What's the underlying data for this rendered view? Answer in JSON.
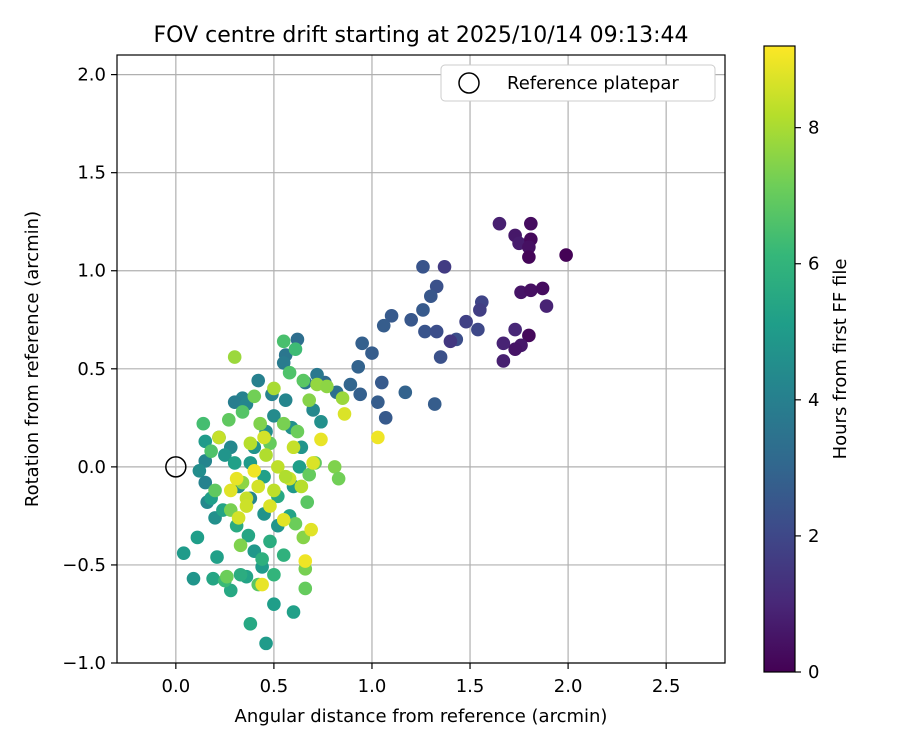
{
  "chart_data": {
    "type": "scatter",
    "title": "FOV centre drift starting at 2025/10/14 09:13:44",
    "xlabel": "Angular distance from reference (arcmin)",
    "ylabel": "Rotation from reference (arcmin)",
    "xlim": [
      -0.3,
      2.8
    ],
    "ylim": [
      -1.0,
      2.1
    ],
    "xticks": [
      0.0,
      0.5,
      1.0,
      1.5,
      2.0,
      2.5
    ],
    "xtick_labels": [
      "0.0",
      "0.5",
      "1.0",
      "1.5",
      "2.0",
      "2.5"
    ],
    "yticks": [
      -1.0,
      -0.5,
      0.0,
      0.5,
      1.0,
      1.5,
      2.0
    ],
    "ytick_labels": [
      "−1.0",
      "−0.5",
      "0.0",
      "0.5",
      "1.0",
      "1.5",
      "2.0"
    ],
    "grid": true,
    "legend": {
      "position": "top-right",
      "entries": [
        {
          "label": "Reference platepar",
          "marker": "open-circle"
        }
      ]
    },
    "reference_point": {
      "x": 0.0,
      "y": 0.0
    },
    "colorbar": {
      "label": "Hours from first FF file",
      "colormap": "viridis",
      "range": [
        0,
        9.2
      ],
      "ticks": [
        0,
        2,
        4,
        6,
        8
      ],
      "tick_labels": [
        "0",
        "2",
        "4",
        "6",
        "8"
      ]
    },
    "colormap_stops": [
      "#440154",
      "#482878",
      "#3e4989",
      "#31688e",
      "#26828e",
      "#1f9e89",
      "#35b779",
      "#6ece58",
      "#b5de2b",
      "#fde725"
    ],
    "series": [
      {
        "name": "FOV centre drift",
        "points": [
          {
            "x": 1.65,
            "y": 1.24,
            "h": 0.8
          },
          {
            "x": 1.73,
            "y": 1.18,
            "h": 0.6
          },
          {
            "x": 1.81,
            "y": 1.24,
            "h": 0.3
          },
          {
            "x": 1.75,
            "y": 1.14,
            "h": 0.7
          },
          {
            "x": 1.81,
            "y": 1.16,
            "h": 0.2
          },
          {
            "x": 1.8,
            "y": 1.12,
            "h": 0.4
          },
          {
            "x": 1.8,
            "y": 1.07,
            "h": 0.1
          },
          {
            "x": 1.99,
            "y": 1.08,
            "h": 0.05
          },
          {
            "x": 1.76,
            "y": 0.89,
            "h": 0.5
          },
          {
            "x": 1.81,
            "y": 0.9,
            "h": 0.4
          },
          {
            "x": 1.87,
            "y": 0.91,
            "h": 0.3
          },
          {
            "x": 1.89,
            "y": 0.82,
            "h": 0.9
          },
          {
            "x": 1.73,
            "y": 0.7,
            "h": 1.0
          },
          {
            "x": 1.8,
            "y": 0.67,
            "h": 0.2
          },
          {
            "x": 1.76,
            "y": 0.62,
            "h": 0.6
          },
          {
            "x": 1.73,
            "y": 0.6,
            "h": 0.5
          },
          {
            "x": 1.67,
            "y": 0.63,
            "h": 0.9
          },
          {
            "x": 1.67,
            "y": 0.54,
            "h": 0.8
          },
          {
            "x": 1.56,
            "y": 0.84,
            "h": 1.9
          },
          {
            "x": 1.55,
            "y": 0.8,
            "h": 1.7
          },
          {
            "x": 1.48,
            "y": 0.74,
            "h": 1.8
          },
          {
            "x": 1.54,
            "y": 0.7,
            "h": 2.0
          },
          {
            "x": 1.43,
            "y": 0.65,
            "h": 2.2
          },
          {
            "x": 1.4,
            "y": 0.64,
            "h": 1.5
          },
          {
            "x": 1.37,
            "y": 1.02,
            "h": 1.6
          },
          {
            "x": 1.26,
            "y": 1.02,
            "h": 2.4
          },
          {
            "x": 1.33,
            "y": 0.92,
            "h": 2.3
          },
          {
            "x": 1.3,
            "y": 0.87,
            "h": 2.5
          },
          {
            "x": 1.26,
            "y": 0.8,
            "h": 2.6
          },
          {
            "x": 1.27,
            "y": 0.69,
            "h": 2.4
          },
          {
            "x": 1.33,
            "y": 0.69,
            "h": 2.2
          },
          {
            "x": 1.35,
            "y": 0.56,
            "h": 2.3
          },
          {
            "x": 1.1,
            "y": 0.77,
            "h": 2.6
          },
          {
            "x": 1.06,
            "y": 0.72,
            "h": 2.7
          },
          {
            "x": 1.2,
            "y": 0.75,
            "h": 2.5
          },
          {
            "x": 0.95,
            "y": 0.63,
            "h": 2.8
          },
          {
            "x": 1.0,
            "y": 0.58,
            "h": 2.7
          },
          {
            "x": 0.93,
            "y": 0.51,
            "h": 2.9
          },
          {
            "x": 1.05,
            "y": 0.43,
            "h": 2.6
          },
          {
            "x": 0.89,
            "y": 0.42,
            "h": 3.0
          },
          {
            "x": 0.94,
            "y": 0.37,
            "h": 2.8
          },
          {
            "x": 1.03,
            "y": 0.33,
            "h": 2.7
          },
          {
            "x": 1.07,
            "y": 0.25,
            "h": 2.6
          },
          {
            "x": 1.17,
            "y": 0.38,
            "h": 2.9
          },
          {
            "x": 1.32,
            "y": 0.32,
            "h": 2.7
          },
          {
            "x": 0.82,
            "y": 0.38,
            "h": 3.4
          },
          {
            "x": 0.76,
            "y": 0.43,
            "h": 3.2
          },
          {
            "x": 0.62,
            "y": 0.65,
            "h": 3.3
          },
          {
            "x": 0.56,
            "y": 0.57,
            "h": 3.6
          },
          {
            "x": 0.55,
            "y": 0.53,
            "h": 3.8
          },
          {
            "x": 0.72,
            "y": 0.47,
            "h": 3.7
          },
          {
            "x": 0.66,
            "y": 0.43,
            "h": 3.6
          },
          {
            "x": 0.42,
            "y": 0.44,
            "h": 4.0
          },
          {
            "x": 0.34,
            "y": 0.35,
            "h": 4.1
          },
          {
            "x": 0.3,
            "y": 0.33,
            "h": 3.9
          },
          {
            "x": 0.36,
            "y": 0.32,
            "h": 4.2
          },
          {
            "x": 0.22,
            "y": 0.15,
            "h": 4.0
          },
          {
            "x": 0.28,
            "y": 0.1,
            "h": 4.3
          },
          {
            "x": 0.15,
            "y": 0.03,
            "h": 4.2
          },
          {
            "x": 0.12,
            "y": -0.02,
            "h": 4.5
          },
          {
            "x": 0.15,
            "y": -0.08,
            "h": 4.1
          },
          {
            "x": 0.16,
            "y": -0.18,
            "h": 4.3
          },
          {
            "x": 0.2,
            "y": -0.26,
            "h": 4.6
          },
          {
            "x": 0.32,
            "y": -0.1,
            "h": 4.4
          },
          {
            "x": 0.38,
            "y": -0.16,
            "h": 4.2
          },
          {
            "x": 0.45,
            "y": -0.24,
            "h": 4.7
          },
          {
            "x": 0.52,
            "y": -0.3,
            "h": 4.8
          },
          {
            "x": 0.4,
            "y": -0.43,
            "h": 4.9
          },
          {
            "x": 0.44,
            "y": -0.51,
            "h": 5.0
          },
          {
            "x": 0.5,
            "y": -0.7,
            "h": 5.1
          },
          {
            "x": 0.46,
            "y": -0.9,
            "h": 5.0
          },
          {
            "x": 0.6,
            "y": -0.74,
            "h": 5.2
          },
          {
            "x": 0.09,
            "y": -0.57,
            "h": 4.8
          },
          {
            "x": 0.04,
            "y": -0.44,
            "h": 5.0
          },
          {
            "x": 0.19,
            "y": -0.57,
            "h": 5.4
          },
          {
            "x": 0.21,
            "y": -0.46,
            "h": 5.2
          },
          {
            "x": 0.11,
            "y": -0.36,
            "h": 5.1
          },
          {
            "x": 0.28,
            "y": -0.63,
            "h": 5.5
          },
          {
            "x": 0.36,
            "y": -0.56,
            "h": 5.3
          },
          {
            "x": 0.33,
            "y": -0.55,
            "h": 5.7
          },
          {
            "x": 0.38,
            "y": -0.8,
            "h": 5.5
          },
          {
            "x": 0.25,
            "y": -0.58,
            "h": 6.2
          },
          {
            "x": 0.5,
            "y": -0.55,
            "h": 6.0
          },
          {
            "x": 0.44,
            "y": -0.47,
            "h": 5.8
          },
          {
            "x": 0.15,
            "y": 0.13,
            "h": 5.0
          },
          {
            "x": 0.25,
            "y": 0.06,
            "h": 4.8
          },
          {
            "x": 0.3,
            "y": 0.02,
            "h": 5.2
          },
          {
            "x": 0.18,
            "y": -0.16,
            "h": 5.1
          },
          {
            "x": 0.24,
            "y": -0.22,
            "h": 5.3
          },
          {
            "x": 0.31,
            "y": -0.3,
            "h": 5.6
          },
          {
            "x": 0.37,
            "y": -0.35,
            "h": 5.4
          },
          {
            "x": 0.48,
            "y": -0.38,
            "h": 5.7
          },
          {
            "x": 0.55,
            "y": -0.45,
            "h": 5.9
          },
          {
            "x": 0.58,
            "y": -0.25,
            "h": 5.3
          },
          {
            "x": 0.6,
            "y": -0.1,
            "h": 4.9
          },
          {
            "x": 0.63,
            "y": 0.0,
            "h": 5.1
          },
          {
            "x": 0.64,
            "y": 0.1,
            "h": 4.8
          },
          {
            "x": 0.59,
            "y": 0.2,
            "h": 4.6
          },
          {
            "x": 0.5,
            "y": 0.26,
            "h": 4.4
          },
          {
            "x": 0.46,
            "y": 0.18,
            "h": 4.5
          },
          {
            "x": 0.4,
            "y": 0.1,
            "h": 4.7
          },
          {
            "x": 0.38,
            "y": 0.02,
            "h": 5.0
          },
          {
            "x": 0.45,
            "y": -0.05,
            "h": 5.2
          },
          {
            "x": 0.52,
            "y": -0.15,
            "h": 5.5
          },
          {
            "x": 0.7,
            "y": 0.29,
            "h": 4.3
          },
          {
            "x": 0.74,
            "y": 0.23,
            "h": 4.6
          },
          {
            "x": 0.56,
            "y": 0.34,
            "h": 4.2
          },
          {
            "x": 0.49,
            "y": 0.37,
            "h": 4.1
          },
          {
            "x": 0.55,
            "y": 0.64,
            "h": 6.5
          },
          {
            "x": 0.61,
            "y": 0.6,
            "h": 6.3
          },
          {
            "x": 0.58,
            "y": 0.48,
            "h": 6.6
          },
          {
            "x": 0.65,
            "y": 0.44,
            "h": 6.8
          },
          {
            "x": 0.14,
            "y": 0.22,
            "h": 6.4
          },
          {
            "x": 0.18,
            "y": 0.08,
            "h": 6.6
          },
          {
            "x": 0.27,
            "y": 0.24,
            "h": 6.9
          },
          {
            "x": 0.34,
            "y": 0.28,
            "h": 6.7
          },
          {
            "x": 0.4,
            "y": 0.36,
            "h": 7.2
          },
          {
            "x": 0.43,
            "y": 0.22,
            "h": 7.4
          },
          {
            "x": 0.48,
            "y": 0.12,
            "h": 7.0
          },
          {
            "x": 0.55,
            "y": 0.22,
            "h": 7.3
          },
          {
            "x": 0.62,
            "y": 0.18,
            "h": 7.1
          },
          {
            "x": 0.68,
            "y": 0.34,
            "h": 7.5
          },
          {
            "x": 0.72,
            "y": 0.42,
            "h": 7.7
          },
          {
            "x": 0.77,
            "y": 0.41,
            "h": 7.6
          },
          {
            "x": 0.85,
            "y": 0.35,
            "h": 7.8
          },
          {
            "x": 0.81,
            "y": 0.0,
            "h": 7.4
          },
          {
            "x": 0.83,
            "y": -0.06,
            "h": 7.2
          },
          {
            "x": 0.71,
            "y": 0.02,
            "h": 6.9
          },
          {
            "x": 0.68,
            "y": -0.04,
            "h": 7.0
          },
          {
            "x": 0.67,
            "y": -0.18,
            "h": 6.8
          },
          {
            "x": 0.61,
            "y": -0.29,
            "h": 7.1
          },
          {
            "x": 0.65,
            "y": -0.36,
            "h": 7.5
          },
          {
            "x": 0.66,
            "y": -0.52,
            "h": 7.3
          },
          {
            "x": 0.66,
            "y": -0.62,
            "h": 7.0
          },
          {
            "x": 0.42,
            "y": -0.6,
            "h": 6.8
          },
          {
            "x": 0.33,
            "y": -0.4,
            "h": 7.4
          },
          {
            "x": 0.26,
            "y": -0.56,
            "h": 7.1
          },
          {
            "x": 0.2,
            "y": -0.12,
            "h": 6.9
          },
          {
            "x": 0.28,
            "y": -0.22,
            "h": 7.3
          },
          {
            "x": 0.34,
            "y": -0.08,
            "h": 7.6
          },
          {
            "x": 0.3,
            "y": 0.56,
            "h": 7.8
          },
          {
            "x": 0.5,
            "y": 0.4,
            "h": 8.0
          },
          {
            "x": 0.38,
            "y": 0.12,
            "h": 8.2
          },
          {
            "x": 0.22,
            "y": 0.15,
            "h": 8.4
          },
          {
            "x": 0.46,
            "y": 0.06,
            "h": 8.1
          },
          {
            "x": 0.52,
            "y": 0.0,
            "h": 8.3
          },
          {
            "x": 0.58,
            "y": -0.06,
            "h": 8.5
          },
          {
            "x": 0.64,
            "y": -0.1,
            "h": 8.2
          },
          {
            "x": 0.42,
            "y": -0.1,
            "h": 8.6
          },
          {
            "x": 0.36,
            "y": -0.16,
            "h": 8.4
          },
          {
            "x": 0.48,
            "y": -0.2,
            "h": 8.7
          },
          {
            "x": 0.55,
            "y": -0.27,
            "h": 8.8
          },
          {
            "x": 0.31,
            "y": -0.06,
            "h": 8.9
          },
          {
            "x": 0.4,
            "y": -0.02,
            "h": 9.0
          },
          {
            "x": 0.28,
            "y": -0.12,
            "h": 8.8
          },
          {
            "x": 0.45,
            "y": 0.15,
            "h": 8.6
          },
          {
            "x": 0.6,
            "y": 0.1,
            "h": 8.4
          },
          {
            "x": 0.7,
            "y": 0.02,
            "h": 8.7
          },
          {
            "x": 0.74,
            "y": 0.14,
            "h": 8.9
          },
          {
            "x": 0.86,
            "y": 0.27,
            "h": 8.7
          },
          {
            "x": 1.03,
            "y": 0.15,
            "h": 9.0
          },
          {
            "x": 0.69,
            "y": -0.32,
            "h": 8.8
          },
          {
            "x": 0.66,
            "y": -0.48,
            "h": 9.0
          },
          {
            "x": 0.44,
            "y": -0.6,
            "h": 8.9
          },
          {
            "x": 0.36,
            "y": -0.2,
            "h": 8.5
          },
          {
            "x": 0.5,
            "y": -0.12,
            "h": 8.3
          },
          {
            "x": 0.56,
            "y": -0.05,
            "h": 8.1
          },
          {
            "x": 0.32,
            "y": -0.26,
            "h": 8.6
          }
        ]
      }
    ]
  }
}
